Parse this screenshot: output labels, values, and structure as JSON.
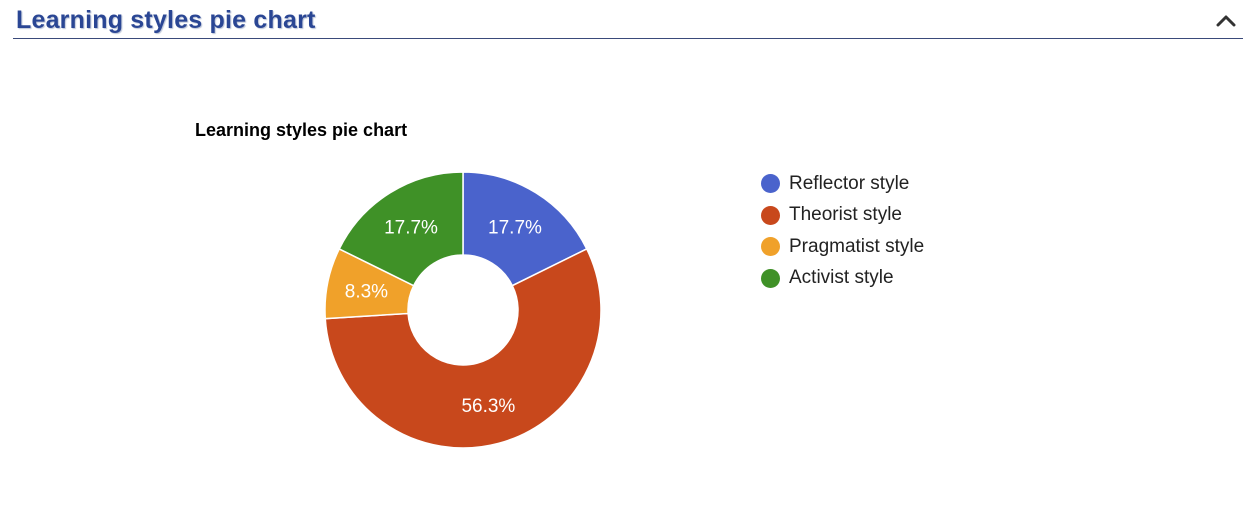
{
  "panel": {
    "title": "Learning styles pie chart",
    "collapse_icon": "chevron-up-icon"
  },
  "chart_data": {
    "type": "pie",
    "title": "Learning styles pie chart",
    "donut": true,
    "legend_position": "right",
    "slices": [
      {
        "label": "Reflector style",
        "value": 17.7,
        "display": "17.7%",
        "color": "#4a63cc"
      },
      {
        "label": "Theorist style",
        "value": 56.3,
        "display": "56.3%",
        "color": "#c8481c"
      },
      {
        "label": "Pragmatist style",
        "value": 8.3,
        "display": "8.3%",
        "color": "#f0a12a"
      },
      {
        "label": "Activist style",
        "value": 17.7,
        "display": "17.7%",
        "color": "#3f9127"
      }
    ]
  }
}
